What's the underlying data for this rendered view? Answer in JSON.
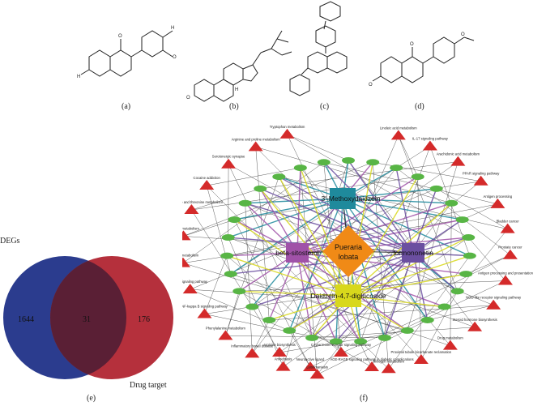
{
  "panels": {
    "a": "(a)",
    "b": "(b)",
    "c": "(c)",
    "d": "(d)",
    "e": "(e)",
    "f": "(f)"
  },
  "structure_atoms": {
    "a_o_top": "O",
    "a_oh_left": "H",
    "a_o_left": "O",
    "a_oh_right": "H",
    "a_o_right": "O",
    "b_h": "H",
    "b_o": "O",
    "d_o_top": "O",
    "d_o_left": "O",
    "d_h_left": "H",
    "d_o_right": "O"
  },
  "venn": {
    "left_label": "DEGs",
    "right_label": "Drug target",
    "left_only": "1644",
    "intersection": "31",
    "right_only": "176",
    "left_color": "#2b3c8e",
    "right_color": "#b5303c",
    "overlap_color": "#5a1f35"
  },
  "network": {
    "center": "Pueraria lobata",
    "compounds": {
      "methoxy": "3'-Methoxydaidzein",
      "beta": "beta-sitosterol",
      "formononetin": "formononetin",
      "daidzein": "Daidzein-4,7-diglucoside"
    },
    "pathways_left": [
      "Tryptophan metabolism",
      "Arginine and proline metabolism",
      "Serotonergic synapse",
      "Cocaine addiction",
      "Glycine, serine and threonine metabolism",
      "Histidine metabolism",
      "Tyrosine metabolism",
      "TNF signaling pathway",
      "NF-kappa B signaling pathway",
      "Phenylalanine metabolism",
      "Inflammatory bowel disease",
      "Amoebiasis",
      "Leishmaniasis"
    ],
    "pathways_right": [
      "Linoleic acid metabolism",
      "IL-17 signaling pathway",
      "Arachidonic acid metabolism",
      "PPAR signaling pathway",
      "Antigen processing",
      "Bladder cancer",
      "Prostate cancer",
      "Antigen processing and presentation",
      "NOD-like receptor signaling pathway",
      "Steroid hormone biosynthesis",
      "Drug metabolism",
      "Proximal tubule bicarbonate reclamation",
      "Nitrogen metabolism"
    ],
    "pathways_bottom": [
      "Arginine biosynthesis",
      "Neuroactive ligand",
      "C-type lectin receptor signaling pathway",
      "AGE-RAGE signaling pathway in diabetic complications"
    ],
    "colors": {
      "triangle": "#d42a2a",
      "gene": "#58b545",
      "center": "#f08a16",
      "methoxy": "#1f8a9c",
      "beta": "#a052a8",
      "formononetin": "#6b4fa0",
      "daidzein": "#d8d81c",
      "edge": "#333333"
    }
  }
}
